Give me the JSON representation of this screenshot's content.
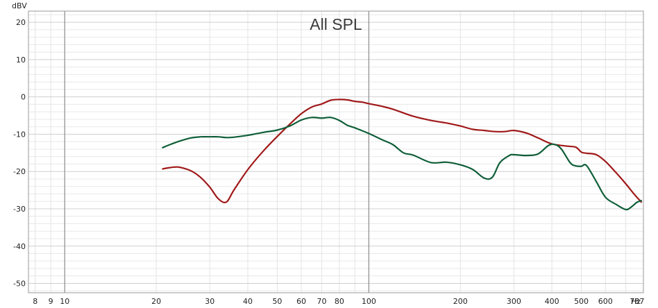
{
  "chart_data": {
    "type": "line",
    "title": "All SPL",
    "y_unit": "dBV",
    "x_unit": "Hz",
    "x_scale": "log",
    "grid": true,
    "legend": "none",
    "xlim": [
      7.6,
      800
    ],
    "ylim": [
      -52.5,
      23
    ],
    "x_ticks": [
      8,
      9,
      10,
      20,
      30,
      40,
      50,
      60,
      70,
      80,
      100,
      200,
      300,
      400,
      500,
      600,
      787
    ],
    "x_tick_labels": [
      "8",
      "9",
      "10",
      "20",
      "30",
      "40",
      "50",
      "60",
      "70",
      "80",
      "100",
      "200",
      "300",
      "400",
      "500",
      "600",
      "787"
    ],
    "y_ticks": [
      20,
      10,
      0,
      -10,
      -20,
      -30,
      -40,
      -50
    ],
    "y_tick_labels": [
      "20",
      "10",
      "0",
      "-10",
      "-20",
      "-30",
      "-40",
      "-50"
    ],
    "series": [
      {
        "color": "#a01818",
        "x": [
          21,
          22,
          23,
          24,
          26,
          28,
          30,
          32,
          34,
          36,
          40,
          45,
          50,
          55,
          60,
          65,
          70,
          75,
          80,
          85,
          90,
          95,
          100,
          110,
          120,
          140,
          160,
          180,
          200,
          220,
          240,
          260,
          280,
          300,
          330,
          360,
          400,
          450,
          480,
          500,
          520,
          560,
          600,
          650,
          700,
          750,
          787
        ],
        "y": [
          -19.3,
          -19.0,
          -18.8,
          -18.9,
          -19.8,
          -21.6,
          -24.2,
          -27.3,
          -28.2,
          -25.0,
          -19.5,
          -14.5,
          -10.6,
          -7.3,
          -4.5,
          -2.7,
          -1.9,
          -0.9,
          -0.7,
          -0.8,
          -1.2,
          -1.4,
          -1.8,
          -2.5,
          -3.3,
          -5.2,
          -6.3,
          -7.0,
          -7.8,
          -8.7,
          -9.0,
          -9.3,
          -9.3,
          -9.0,
          -9.7,
          -11.0,
          -12.6,
          -13.2,
          -13.5,
          -14.8,
          -15.1,
          -15.5,
          -17.3,
          -20.3,
          -23.3,
          -26.3,
          -28.2
        ]
      },
      {
        "color": "#0e5e38",
        "x": [
          21,
          22,
          24,
          26,
          28,
          30,
          32,
          34,
          36,
          40,
          45,
          50,
          55,
          60,
          65,
          70,
          75,
          80,
          85,
          90,
          100,
          110,
          120,
          130,
          140,
          160,
          180,
          200,
          220,
          240,
          255,
          270,
          290,
          300,
          330,
          360,
          390,
          410,
          430,
          460,
          480,
          500,
          520,
          560,
          600,
          650,
          700,
          730,
          760,
          787
        ],
        "y": [
          -13.6,
          -12.9,
          -11.8,
          -11.0,
          -10.7,
          -10.7,
          -10.7,
          -10.9,
          -10.8,
          -10.3,
          -9.5,
          -8.9,
          -7.8,
          -6.2,
          -5.5,
          -5.7,
          -5.5,
          -6.3,
          -7.6,
          -8.3,
          -9.8,
          -11.4,
          -12.8,
          -15.0,
          -15.6,
          -17.6,
          -17.5,
          -18.2,
          -19.5,
          -21.8,
          -21.5,
          -17.6,
          -15.7,
          -15.5,
          -15.7,
          -15.3,
          -13.0,
          -12.8,
          -14.0,
          -17.7,
          -18.5,
          -18.6,
          -18.4,
          -22.7,
          -26.9,
          -28.8,
          -30.2,
          -29.5,
          -28.3,
          -27.8
        ]
      }
    ]
  }
}
